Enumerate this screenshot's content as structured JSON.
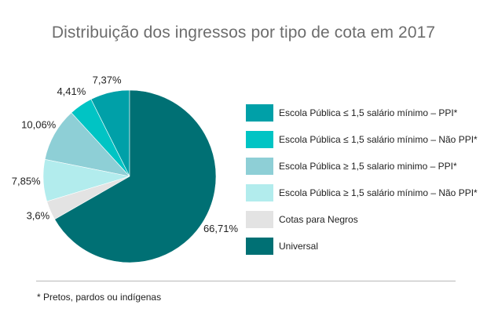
{
  "title": "Distribuição dos ingressos por tipo de cota em 2017",
  "footnote": "* Pretos, pardos ou indígenas",
  "chart_data": {
    "type": "pie",
    "title": "Distribuição dos ingressos por tipo de cota em 2017",
    "legend_position": "right",
    "slices": [
      {
        "name": "Escola Pública ≤ 1,5 salário mínimo – PPI*",
        "value": 7.37,
        "label": "7,37%",
        "color": "#00a0a8"
      },
      {
        "name": "Escola Pública ≤ 1,5 salário mínimo – Não PPI*",
        "value": 4.41,
        "label": "4,41%",
        "color": "#00c4c4"
      },
      {
        "name": "Escola Pública ≥ 1,5 salario minimo – PPI*",
        "value": 10.06,
        "label": "10,06%",
        "color": "#8ecfd6"
      },
      {
        "name": "Escola Pública ≥ 1,5 salário mínimo – Não PPI*",
        "value": 7.85,
        "label": "7,85%",
        "color": "#b2eced"
      },
      {
        "name": "Cotas para Negros",
        "value": 3.6,
        "label": "3,6%",
        "color": "#e3e3e3"
      },
      {
        "name": "Universal",
        "value": 66.71,
        "label": "66,71%",
        "color": "#007074"
      }
    ]
  }
}
